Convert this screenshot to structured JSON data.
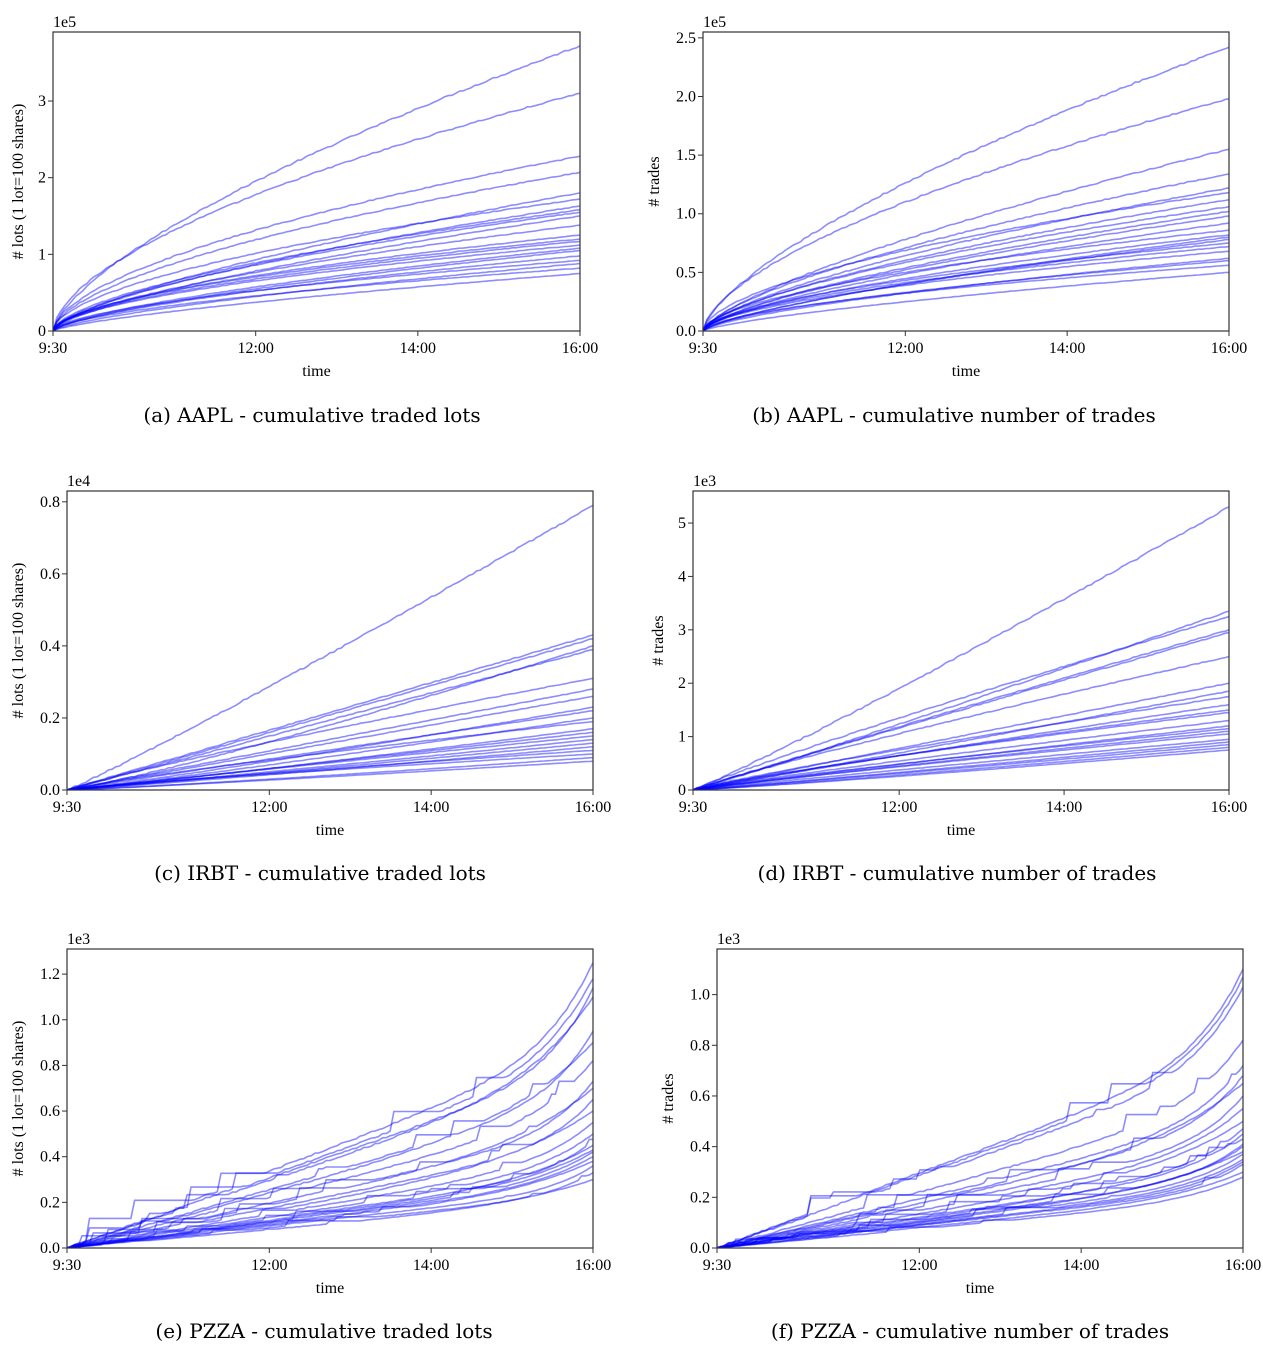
{
  "chart_data": [
    {
      "id": "a",
      "type": "line",
      "caption": "(a) AAPL - cumulative traded lots",
      "ylabel": "# lots (1 lot=100 shares)",
      "xlabel": "time",
      "offset_label": "1e5",
      "xticks": [
        "9:30",
        "12:00",
        "14:00",
        "16:00"
      ],
      "xtick_hours": [
        9.5,
        12,
        14,
        16
      ],
      "xlim": [
        9.5,
        16
      ],
      "yticks": [
        "0",
        "1",
        "2",
        "3"
      ],
      "ytick_values": [
        0,
        1,
        2,
        3
      ],
      "ylim": [
        0,
        3.9
      ],
      "grid": false,
      "n_series": 22,
      "series_final_values": [
        3.72,
        3.1,
        2.28,
        2.07,
        1.8,
        1.72,
        1.63,
        1.58,
        1.55,
        1.5,
        1.38,
        1.25,
        1.2,
        1.17,
        1.12,
        1.08,
        1.05,
        0.98,
        0.92,
        0.88,
        0.82,
        0.75
      ],
      "series_shape": "concave"
    },
    {
      "id": "b",
      "type": "line",
      "caption": "(b) AAPL - cumulative number of trades",
      "ylabel": "# trades",
      "xlabel": "time",
      "offset_label": "1e5",
      "xticks": [
        "9:30",
        "12:00",
        "14:00",
        "16:00"
      ],
      "xtick_hours": [
        9.5,
        12,
        14,
        16
      ],
      "xlim": [
        9.5,
        16
      ],
      "yticks": [
        "0.0",
        "0.5",
        "1.0",
        "1.5",
        "2.0",
        "2.5"
      ],
      "ytick_values": [
        0,
        0.5,
        1.0,
        1.5,
        2.0,
        2.5
      ],
      "ylim": [
        0,
        2.55
      ],
      "grid": false,
      "n_series": 22,
      "series_final_values": [
        2.42,
        1.98,
        1.55,
        1.34,
        1.22,
        1.18,
        1.12,
        1.06,
        1.02,
        0.98,
        0.92,
        0.86,
        0.82,
        0.8,
        0.78,
        0.75,
        0.72,
        0.68,
        0.62,
        0.6,
        0.56,
        0.5
      ],
      "series_shape": "concave"
    },
    {
      "id": "c",
      "type": "line",
      "caption": "(c) IRBT - cumulative traded lots",
      "ylabel": "# lots (1 lot=100 shares)",
      "xlabel": "time",
      "offset_label": "1e4",
      "xticks": [
        "9:30",
        "12:00",
        "14:00",
        "16:00"
      ],
      "xtick_hours": [
        9.5,
        12,
        14,
        16
      ],
      "xlim": [
        9.5,
        16
      ],
      "yticks": [
        "0.0",
        "0.2",
        "0.4",
        "0.6",
        "0.8"
      ],
      "ytick_values": [
        0,
        0.2,
        0.4,
        0.6,
        0.8
      ],
      "ylim": [
        0,
        0.83
      ],
      "grid": false,
      "n_series": 22,
      "series_final_values": [
        0.79,
        0.43,
        0.42,
        0.4,
        0.39,
        0.31,
        0.28,
        0.26,
        0.23,
        0.22,
        0.2,
        0.19,
        0.17,
        0.16,
        0.15,
        0.14,
        0.13,
        0.12,
        0.11,
        0.1,
        0.09,
        0.08
      ],
      "series_shape": "linear"
    },
    {
      "id": "d",
      "type": "line",
      "caption": "(d) IRBT - cumulative number of trades",
      "ylabel": "# trades",
      "xlabel": "time",
      "offset_label": "1e3",
      "xticks": [
        "9:30",
        "12:00",
        "14:00",
        "16:00"
      ],
      "xtick_hours": [
        9.5,
        12,
        14,
        16
      ],
      "xlim": [
        9.5,
        16
      ],
      "yticks": [
        "0",
        "1",
        "2",
        "3",
        "4",
        "5"
      ],
      "ytick_values": [
        0,
        1,
        2,
        3,
        4,
        5
      ],
      "ylim": [
        0,
        5.6
      ],
      "grid": false,
      "n_series": 22,
      "series_final_values": [
        5.3,
        3.35,
        3.25,
        3.0,
        2.95,
        2.5,
        2.0,
        1.85,
        1.75,
        1.6,
        1.5,
        1.45,
        1.3,
        1.2,
        1.15,
        1.1,
        1.05,
        0.95,
        0.9,
        0.85,
        0.8,
        0.75
      ],
      "series_shape": "linear"
    },
    {
      "id": "e",
      "type": "line",
      "caption": "(e) PZZA - cumulative traded lots",
      "ylabel": "# lots (1 lot=100 shares)",
      "xlabel": "time",
      "offset_label": "1e3",
      "xticks": [
        "9:30",
        "12:00",
        "14:00",
        "16:00"
      ],
      "xtick_hours": [
        9.5,
        12,
        14,
        16
      ],
      "xlim": [
        9.5,
        16
      ],
      "yticks": [
        "0.0",
        "0.2",
        "0.4",
        "0.6",
        "0.8",
        "1.0",
        "1.2"
      ],
      "ytick_values": [
        0,
        0.2,
        0.4,
        0.6,
        0.8,
        1.0,
        1.2
      ],
      "ylim": [
        0,
        1.31
      ],
      "grid": false,
      "n_series": 22,
      "series_final_values": [
        1.25,
        1.18,
        1.14,
        1.1,
        0.95,
        0.9,
        0.82,
        0.73,
        0.7,
        0.65,
        0.6,
        0.55,
        0.5,
        0.47,
        0.45,
        0.43,
        0.42,
        0.4,
        0.38,
        0.36,
        0.33,
        0.3
      ],
      "series_shape": "convex"
    },
    {
      "id": "f",
      "type": "line",
      "caption": "(f) PZZA - cumulative number of trades",
      "ylabel": "# trades",
      "xlabel": "time",
      "offset_label": "1e3",
      "xticks": [
        "9:30",
        "12:00",
        "14:00",
        "16:00"
      ],
      "xtick_hours": [
        9.5,
        12,
        14,
        16
      ],
      "xlim": [
        9.5,
        16
      ],
      "yticks": [
        "0.0",
        "0.2",
        "0.4",
        "0.6",
        "0.8",
        "1.0"
      ],
      "ytick_values": [
        0,
        0.2,
        0.4,
        0.6,
        0.8,
        1.0
      ],
      "ylim": [
        0,
        1.18
      ],
      "grid": false,
      "n_series": 22,
      "series_final_values": [
        1.1,
        1.07,
        1.03,
        0.82,
        0.72,
        0.68,
        0.65,
        0.6,
        0.55,
        0.5,
        0.47,
        0.45,
        0.43,
        0.41,
        0.4,
        0.38,
        0.37,
        0.35,
        0.34,
        0.33,
        0.3,
        0.28
      ],
      "series_shape": "convex"
    }
  ],
  "style": {
    "line_color": "#0000ff",
    "frame_color": "#333333"
  }
}
